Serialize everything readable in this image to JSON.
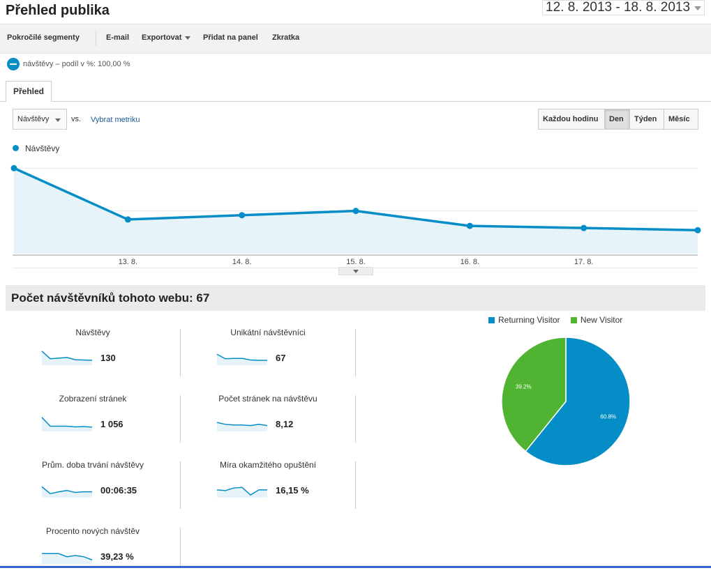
{
  "header": {
    "title": "Přehled publika",
    "date_range": "12. 8. 2013 - 18. 8. 2013"
  },
  "toolbar": {
    "segments": "Pokročilé segmenty",
    "email": "E-mail",
    "export": "Exportovat",
    "add_panel": "Přidat na panel",
    "shortcut": "Zkratka"
  },
  "segment": {
    "label": "návštěvy – podíl v %: 100,00 %"
  },
  "tabs": [
    {
      "label": "Přehled"
    }
  ],
  "controls": {
    "metric": "Návštěvy",
    "vs": "vs.",
    "select_metric": "Vybrat metriku",
    "granularity": [
      "Každou hodinu",
      "Den",
      "Týden",
      "Měsíc"
    ],
    "active_granularity": "Den"
  },
  "chart_data": {
    "type": "area",
    "series": [
      {
        "name": "Návštěvy",
        "values": [
          40,
          16,
          18,
          20,
          13,
          12,
          11
        ]
      }
    ],
    "x": [
      "12. 8.",
      "13. 8.",
      "14. 8.",
      "15. 8.",
      "16. 8.",
      "17. 8.",
      "18. 8."
    ],
    "x_tick_labels": [
      "13. 8.",
      "14. 8.",
      "15. 8.",
      "16. 8.",
      "17. 8."
    ],
    "y_ticks": [
      20,
      40
    ],
    "ylim": [
      0,
      44
    ],
    "grid": true,
    "color": "#058dc7",
    "fill": "#e6f3f9"
  },
  "summary": {
    "title": "Počet návštěvníků tohoto webu: 67",
    "metrics": [
      {
        "label": "Návštěvy",
        "value": "130",
        "spark": [
          40,
          16,
          18,
          20,
          13,
          12,
          11
        ]
      },
      {
        "label": "Unikátní návštěvníci",
        "value": "67",
        "spark": [
          30,
          16,
          17,
          17,
          12,
          11,
          11
        ]
      },
      {
        "label": "Zobrazení stránek",
        "value": "1 056",
        "spark": [
          40,
          12,
          12,
          12,
          10,
          11,
          9
        ]
      },
      {
        "label": "Počet stránek na návštěvu",
        "value": "8,12",
        "spark": [
          24,
          18,
          16,
          16,
          14,
          18,
          14
        ]
      },
      {
        "label": "Prům. doba trvání návštěvy",
        "value": "00:06:35",
        "spark": [
          30,
          8,
          14,
          18,
          12,
          14,
          14
        ]
      },
      {
        "label": "Míra okamžitého opuštění",
        "value": "16,15 %",
        "spark": [
          20,
          18,
          26,
          28,
          4,
          20,
          20
        ]
      },
      {
        "label": "Procento nových návštěv",
        "value": "39,23 %",
        "spark": [
          28,
          28,
          28,
          18,
          22,
          18,
          8
        ]
      }
    ]
  },
  "pie": {
    "legend": [
      {
        "name": "Returning Visitor",
        "color": "#058dc7"
      },
      {
        "name": "New Visitor",
        "color": "#50b432"
      }
    ],
    "slices": [
      {
        "name": "Returning Visitor",
        "value": 60.8,
        "label": "60.8%",
        "color": "#058dc7"
      },
      {
        "name": "New Visitor",
        "value": 39.2,
        "label": "39.2%",
        "color": "#50b432"
      }
    ]
  }
}
